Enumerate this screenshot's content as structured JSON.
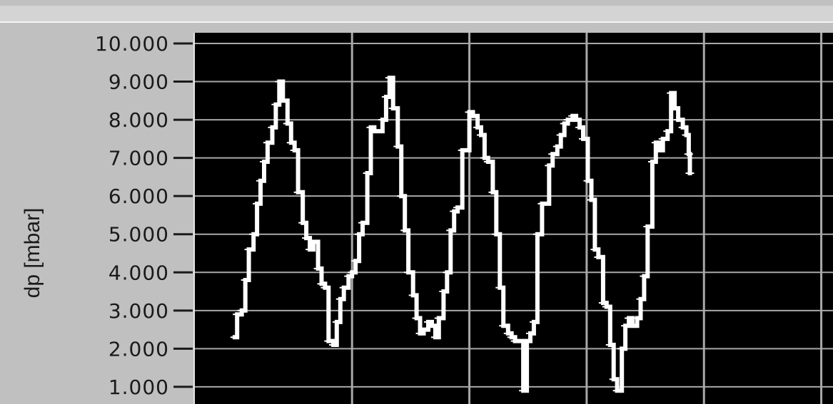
{
  "window": {
    "bg_color": "#c0c0c0",
    "header_color": "#d4d4d4"
  },
  "chart_data": {
    "type": "line",
    "ylabel": "dp [mbar]",
    "ylim": [
      0.55,
      10.28
    ],
    "yticks": [
      1,
      2,
      3,
      4,
      5,
      6,
      7,
      8,
      9,
      10
    ],
    "ytick_labels": [
      "1.000",
      "2.000",
      "3.000",
      "4.000",
      "5.000",
      "6.000",
      "7.000",
      "8.000",
      "9.000",
      "10.000"
    ],
    "x_gridlines": [
      1,
      2,
      3,
      4,
      5
    ],
    "xlim": [
      -0.34,
      5.1
    ],
    "grid": true,
    "colors": {
      "plot_bg": "#000000",
      "grid": "#a8a8a8",
      "line": "#ffffff",
      "axis_text": "#1a1a1a"
    },
    "series": [
      {
        "values": [
          [
            0.0,
            2.3
          ],
          [
            0.02,
            2.9
          ],
          [
            0.06,
            3.0
          ],
          [
            0.09,
            3.8
          ],
          [
            0.12,
            4.6
          ],
          [
            0.16,
            5.0
          ],
          [
            0.19,
            5.8
          ],
          [
            0.22,
            6.4
          ],
          [
            0.25,
            6.9
          ],
          [
            0.28,
            7.4
          ],
          [
            0.32,
            7.8
          ],
          [
            0.35,
            8.4
          ],
          [
            0.38,
            9.0
          ],
          [
            0.41,
            8.5
          ],
          [
            0.45,
            7.9
          ],
          [
            0.48,
            7.4
          ],
          [
            0.51,
            7.2
          ],
          [
            0.54,
            6.1
          ],
          [
            0.58,
            5.3
          ],
          [
            0.61,
            4.9
          ],
          [
            0.64,
            4.6
          ],
          [
            0.67,
            4.8
          ],
          [
            0.71,
            4.1
          ],
          [
            0.74,
            3.7
          ],
          [
            0.77,
            3.6
          ],
          [
            0.8,
            2.2
          ],
          [
            0.84,
            2.1
          ],
          [
            0.87,
            2.7
          ],
          [
            0.9,
            3.3
          ],
          [
            0.93,
            3.6
          ],
          [
            0.97,
            3.9
          ],
          [
            1.0,
            4.0
          ],
          [
            1.03,
            4.3
          ],
          [
            1.06,
            5.0
          ],
          [
            1.09,
            5.3
          ],
          [
            1.13,
            6.6
          ],
          [
            1.16,
            7.8
          ],
          [
            1.19,
            7.7
          ],
          [
            1.22,
            7.7
          ],
          [
            1.26,
            8.0
          ],
          [
            1.29,
            8.6
          ],
          [
            1.32,
            9.1
          ],
          [
            1.35,
            8.3
          ],
          [
            1.39,
            7.3
          ],
          [
            1.42,
            6.0
          ],
          [
            1.45,
            5.1
          ],
          [
            1.48,
            4.0
          ],
          [
            1.52,
            3.4
          ],
          [
            1.55,
            2.8
          ],
          [
            1.58,
            2.4
          ],
          [
            1.61,
            2.5
          ],
          [
            1.65,
            2.7
          ],
          [
            1.68,
            2.6
          ],
          [
            1.71,
            2.3
          ],
          [
            1.74,
            2.8
          ],
          [
            1.78,
            3.5
          ],
          [
            1.81,
            4.0
          ],
          [
            1.84,
            5.1
          ],
          [
            1.87,
            5.6
          ],
          [
            1.9,
            5.7
          ],
          [
            1.94,
            7.2
          ],
          [
            1.97,
            7.2
          ],
          [
            2.0,
            8.2
          ],
          [
            2.03,
            8.1
          ],
          [
            2.07,
            7.8
          ],
          [
            2.1,
            7.6
          ],
          [
            2.13,
            7.0
          ],
          [
            2.16,
            6.9
          ],
          [
            2.2,
            6.1
          ],
          [
            2.23,
            5.0
          ],
          [
            2.26,
            3.6
          ],
          [
            2.29,
            2.6
          ],
          [
            2.33,
            2.4
          ],
          [
            2.36,
            2.3
          ],
          [
            2.39,
            2.2
          ],
          [
            2.42,
            2.2
          ],
          [
            2.46,
            0.9
          ],
          [
            2.49,
            2.2
          ],
          [
            2.52,
            2.4
          ],
          [
            2.55,
            2.7
          ],
          [
            2.58,
            5.0
          ],
          [
            2.62,
            5.8
          ],
          [
            2.65,
            5.8
          ],
          [
            2.68,
            6.8
          ],
          [
            2.71,
            7.1
          ],
          [
            2.75,
            7.3
          ],
          [
            2.78,
            7.6
          ],
          [
            2.81,
            7.9
          ],
          [
            2.84,
            8.0
          ],
          [
            2.88,
            8.1
          ],
          [
            2.91,
            8.0
          ],
          [
            2.94,
            7.8
          ],
          [
            2.97,
            7.5
          ],
          [
            3.01,
            6.4
          ],
          [
            3.04,
            5.9
          ],
          [
            3.07,
            4.6
          ],
          [
            3.1,
            4.4
          ],
          [
            3.14,
            3.2
          ],
          [
            3.17,
            3.1
          ],
          [
            3.2,
            2.1
          ],
          [
            3.23,
            1.2
          ],
          [
            3.26,
            0.9
          ],
          [
            3.3,
            2.0
          ],
          [
            3.33,
            2.6
          ],
          [
            3.36,
            2.8
          ],
          [
            3.39,
            2.6
          ],
          [
            3.43,
            2.8
          ],
          [
            3.46,
            3.3
          ],
          [
            3.49,
            3.9
          ],
          [
            3.52,
            5.2
          ],
          [
            3.56,
            6.9
          ],
          [
            3.59,
            7.4
          ],
          [
            3.62,
            7.2
          ],
          [
            3.65,
            7.5
          ],
          [
            3.69,
            7.7
          ],
          [
            3.72,
            8.7
          ],
          [
            3.75,
            8.3
          ],
          [
            3.78,
            8.0
          ],
          [
            3.82,
            7.8
          ],
          [
            3.85,
            7.6
          ],
          [
            3.87,
            7.1
          ],
          [
            3.88,
            6.6
          ]
        ]
      }
    ]
  }
}
